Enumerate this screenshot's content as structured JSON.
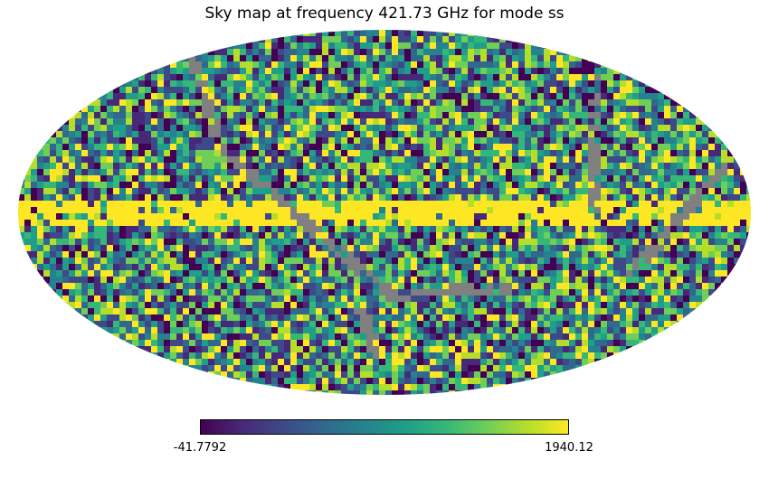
{
  "title": "Sky map at frequency 421.73 GHz for mode ss",
  "colorbar": {
    "min_label": "-41.7792",
    "max_label": "1940.12",
    "min_value": -41.7792,
    "max_value": 1940.12,
    "colormap": "viridis"
  },
  "colors": {
    "masked": "#808080",
    "viridis_stops": [
      "#440154",
      "#482878",
      "#3e4989",
      "#31688e",
      "#26828e",
      "#1f9e89",
      "#35b779",
      "#6ece58",
      "#b5de2b",
      "#fde725"
    ]
  },
  "projection": "mollweide"
}
